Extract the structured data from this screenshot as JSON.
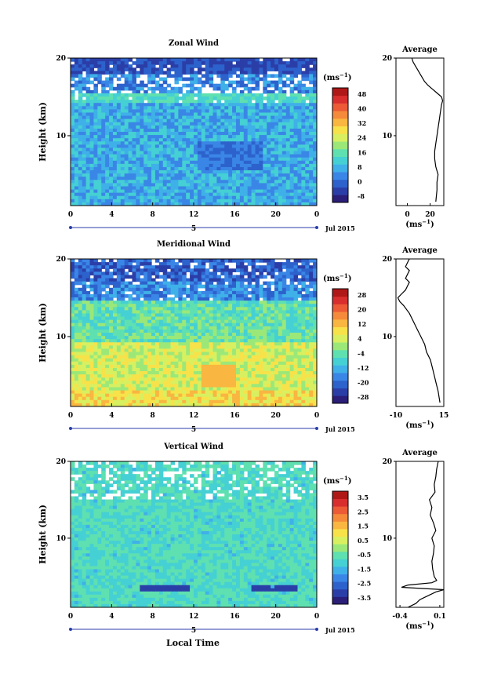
{
  "figure": {
    "xlabel": "Local Time",
    "date_label": "Jul 2015",
    "day_label": "5"
  },
  "colormap": [
    "#2a1e78",
    "#2b3ea8",
    "#2d62cc",
    "#3a86e6",
    "#3fb0e8",
    "#45d0d4",
    "#5fe0b0",
    "#9be879",
    "#d8f060",
    "#f7e24a",
    "#f9b640",
    "#f58a3a",
    "#ec5a36",
    "#d92e2e",
    "#b01818"
  ],
  "panels": [
    {
      "key": "zonal",
      "title": "Zonal Wind",
      "ylabel": "Height (km)",
      "unit_label": "(ms",
      "unit_exp": "−1",
      "avg_title": "Average",
      "avg_unit_label": "(ms",
      "avg_unit_exp": "−1",
      "x_ticks": [
        "0",
        "4",
        "8",
        "12",
        "16",
        "20",
        "0"
      ],
      "y_ticks": [
        "20",
        "10"
      ],
      "cbar_ticks": [
        "48",
        "40",
        "32",
        "24",
        "16",
        "8",
        "0",
        "-8"
      ],
      "avg_x_ticks": [
        "0",
        "20"
      ],
      "avg_y_ticks": [
        "20",
        "10"
      ],
      "chart_data": {
        "type": "heatmap",
        "title": "Zonal Wind",
        "x_range_local_time_h": [
          0,
          24
        ],
        "y_range_km": [
          1,
          20
        ],
        "color_range_ms": [
          -8,
          52
        ],
        "average_profile": {
          "height_km": [
            1.5,
            3,
            4,
            5,
            6,
            7,
            8,
            9,
            10,
            11,
            12,
            13,
            14,
            14.5,
            15,
            15.5,
            16,
            16.5,
            17,
            17.5,
            18,
            18.5,
            19,
            19.5,
            20
          ],
          "value_ms": [
            25,
            26,
            26,
            27,
            25,
            24,
            24,
            25,
            26,
            27,
            28,
            29,
            30,
            31,
            30,
            26,
            22,
            18,
            15,
            13,
            11,
            9,
            7,
            5,
            4
          ]
        },
        "average_xlim": [
          -10,
          32
        ]
      }
    },
    {
      "key": "meridional",
      "title": "Meridional Wind",
      "ylabel": "Height (km)",
      "unit_label": "(ms",
      "unit_exp": "−1",
      "avg_title": "Average",
      "avg_unit_label": "(ms",
      "avg_unit_exp": "−1",
      "x_ticks": [
        "0",
        "4",
        "8",
        "12",
        "16",
        "20",
        "0"
      ],
      "y_ticks": [
        "20",
        "10"
      ],
      "cbar_ticks": [
        "28",
        "20",
        "12",
        "4",
        "-4",
        "-12",
        "-20",
        "-28"
      ],
      "avg_x_ticks": [
        "-10",
        "15"
      ],
      "avg_y_ticks": [
        "20",
        "10"
      ],
      "chart_data": {
        "type": "heatmap",
        "title": "Meridional Wind",
        "x_range_local_time_h": [
          0,
          24
        ],
        "y_range_km": [
          1,
          20
        ],
        "color_range_ms": [
          -32,
          32
        ],
        "average_profile": {
          "height_km": [
            1.5,
            3,
            4,
            5,
            6,
            7,
            8,
            9,
            10,
            11,
            12,
            13,
            14,
            14.5,
            15,
            15.5,
            16,
            16.5,
            17,
            17.5,
            18,
            18.5,
            19,
            19.5,
            20
          ],
          "value_ms": [
            13,
            12,
            11,
            10,
            9,
            8,
            6,
            5,
            3,
            1,
            -1,
            -3,
            -6,
            -8,
            -9,
            -7,
            -5,
            -4,
            -3,
            -5,
            -4,
            -3,
            -5,
            -4,
            -3
          ]
        },
        "average_xlim": [
          -10,
          15
        ]
      }
    },
    {
      "key": "vertical",
      "title": "Vertical Wind",
      "ylabel": "Height (km)",
      "unit_label": "(ms",
      "unit_exp": "−1",
      "avg_title": "Average",
      "avg_unit_label": "(ms",
      "avg_unit_exp": "−1",
      "x_ticks": [
        "0",
        "4",
        "8",
        "12",
        "16",
        "20",
        "0"
      ],
      "y_ticks": [
        "20",
        "10"
      ],
      "cbar_ticks": [
        "3.5",
        "2.5",
        "1.5",
        "0.5",
        "-0.5",
        "-1.5",
        "-2.5",
        "-3.5"
      ],
      "avg_x_ticks": [
        "-0.4",
        "0.1"
      ],
      "avg_y_ticks": [
        "20",
        "10"
      ],
      "chart_data": {
        "type": "heatmap",
        "title": "Vertical Wind",
        "x_range_local_time_h": [
          0,
          24
        ],
        "y_range_km": [
          1,
          20
        ],
        "color_range_ms": [
          -4,
          4
        ],
        "average_profile": {
          "height_km": [
            1,
            1.5,
            2,
            2.5,
            3,
            3.3,
            3.6,
            3.9,
            4.2,
            4.5,
            5,
            6,
            7,
            8,
            9,
            10,
            11,
            12,
            13,
            14,
            15,
            16,
            17,
            18,
            19,
            20
          ],
          "value_ms": [
            -0.3,
            -0.2,
            -0.15,
            -0.05,
            0.05,
            0.15,
            -0.38,
            -0.3,
            0.0,
            0.06,
            0.03,
            0.01,
            0.0,
            0.02,
            0.03,
            0.0,
            0.05,
            0.02,
            -0.02,
            0.0,
            -0.03,
            0.04,
            0.03,
            0.05,
            0.06,
            0.08
          ]
        },
        "average_xlim": [
          -0.45,
          0.15
        ]
      }
    }
  ]
}
